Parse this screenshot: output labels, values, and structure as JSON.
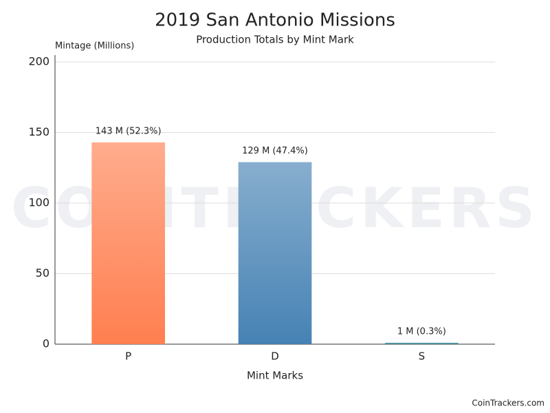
{
  "chart_data": {
    "type": "bar",
    "title": "2019 San Antonio Missions",
    "subtitle": "Production Totals by Mint Mark",
    "y_label": "Mintage (Millions)",
    "x_label": "Mint Marks",
    "categories": [
      "P",
      "D",
      "S"
    ],
    "values": [
      143,
      129,
      1
    ],
    "value_labels": [
      "143 M (52.3%)",
      "129 M (47.4%)",
      "1 M (0.3%)"
    ],
    "colors": [
      "#ff7f50",
      "#4682b4",
      "#2e7d8c"
    ],
    "ylim": [
      0,
      200
    ],
    "yticks": [
      0,
      50,
      100,
      150,
      200
    ],
    "grid": true,
    "watermark": "COINTRACKERS",
    "footer": "CoinTrackers.com"
  }
}
